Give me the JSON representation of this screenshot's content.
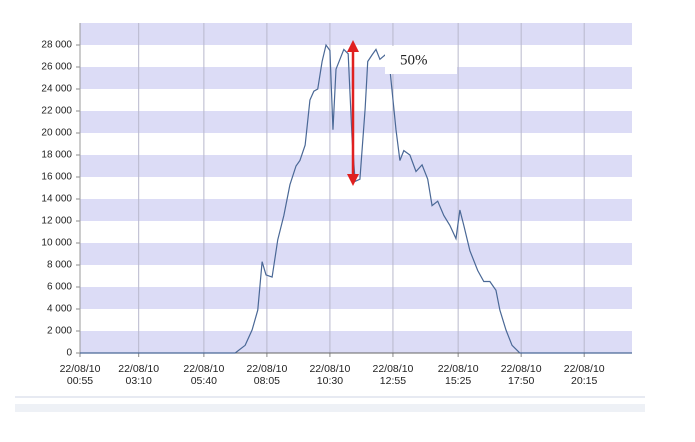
{
  "chart_data": {
    "type": "line",
    "x": [
      55,
      412,
      435,
      451,
      464,
      474,
      483,
      497,
      510,
      524,
      538,
      552,
      561,
      573,
      584,
      593,
      602,
      612,
      621,
      630,
      637,
      644,
      653,
      662,
      672,
      681,
      688,
      699,
      711,
      717,
      727,
      736,
      745,
      757,
      768,
      782,
      791,
      800,
      814,
      828,
      842,
      855,
      865,
      878,
      892,
      906,
      920,
      929,
      938,
      952,
      970,
      984,
      998,
      1012,
      1021,
      1035,
      1049,
      1067,
      1325
    ],
    "values": [
      0,
      0,
      700,
      2100,
      3900,
      8300,
      7100,
      6900,
      10300,
      12500,
      15300,
      17000,
      17500,
      18900,
      23000,
      23800,
      24000,
      26500,
      28000,
      27500,
      20300,
      25800,
      26700,
      27600,
      27200,
      19500,
      15600,
      15800,
      22200,
      26500,
      27100,
      27600,
      26700,
      27100,
      25800,
      20300,
      17500,
      18400,
      18000,
      16500,
      17100,
      15800,
      13400,
      13800,
      12500,
      11600,
      10400,
      13000,
      11600,
      9300,
      7500,
      6500,
      6500,
      5700,
      3900,
      2100,
      700,
      0,
      0
    ],
    "color": "#4a6896",
    "xlim": [
      55,
      1325
    ],
    "xticks": [
      {
        "value": 55,
        "label": "22/08/10 00:55"
      },
      {
        "value": 190,
        "label": "22/08/10 03:10"
      },
      {
        "value": 340,
        "label": "22/08/10 05:40"
      },
      {
        "value": 485,
        "label": "22/08/10 08:05"
      },
      {
        "value": 630,
        "label": "22/08/10 10:30"
      },
      {
        "value": 775,
        "label": "22/08/10 12:55"
      },
      {
        "value": 925,
        "label": "22/08/10 15:25"
      },
      {
        "value": 1070,
        "label": "22/08/10 17:50"
      },
      {
        "value": 1215,
        "label": "22/08/10 20:15"
      }
    ],
    "ylim": [
      0,
      30000
    ],
    "yticks": [
      0,
      {
        "value": 2000,
        "label": "2 000"
      },
      {
        "value": 4000,
        "label": "4 000"
      },
      {
        "value": 6000,
        "label": "6 000"
      },
      {
        "value": 8000,
        "label": "8 000"
      },
      {
        "value": 10000,
        "label": "10 000"
      },
      {
        "value": 12000,
        "label": "12 000"
      },
      {
        "value": 14000,
        "label": "14 000"
      },
      {
        "value": 16000,
        "label": "16 000"
      },
      {
        "value": 18000,
        "label": "18 000"
      },
      {
        "value": 20000,
        "label": "20 000"
      },
      {
        "value": 22000,
        "label": "22 000"
      },
      {
        "value": 24000,
        "label": "24 000"
      },
      {
        "value": 26000,
        "label": "26 000"
      },
      {
        "value": 28000,
        "label": "28 000"
      }
    ],
    "annotation": "50%",
    "grid": true
  }
}
